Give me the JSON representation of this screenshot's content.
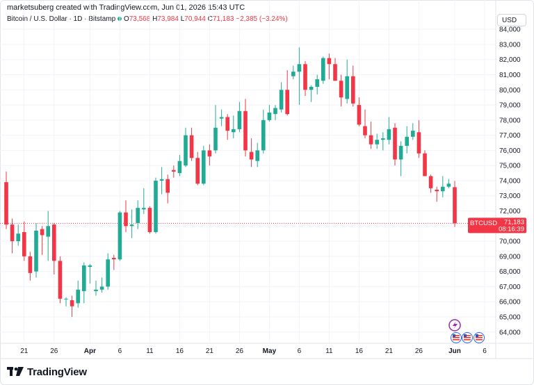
{
  "header": {
    "credit": "marketsuberg created with TradingView.com, Jun 01, 2026 15:43 UTC",
    "symbol": "Bitcoin / U.S. Dollar · 1D · Bitstamp",
    "o_label": "O",
    "o_value": "73,568",
    "h_label": "H",
    "h_value": "73,984",
    "l_label": "L",
    "l_value": "70,944",
    "c_label": "C",
    "c_value": "71,183",
    "change": "−2,385 (−3.24%)"
  },
  "currency_button": "USD",
  "price_tag": {
    "ticker": "BTCUSD",
    "price": "71,183",
    "countdown": "08:16:39"
  },
  "brand": {
    "name": "TradingView",
    "icon": "tradingview-logo-icon"
  },
  "event_icons": [
    "lightning-event-icon",
    "us-flag-event-icon",
    "us-flag-event-icon",
    "us-flag-event-icon"
  ],
  "colors": {
    "up": "#22ab94",
    "down": "#f23645",
    "grid": "#f0f3fa",
    "axis_text": "#131722"
  },
  "chart_data": {
    "type": "candlestick",
    "title": "Bitcoin / U.S. Dollar · 1D · Bitstamp",
    "ylim": [
      63300,
      84100
    ],
    "y_ticks": [
      64000,
      65000,
      66000,
      67000,
      68000,
      69000,
      70000,
      71000,
      72000,
      73000,
      74000,
      75000,
      76000,
      77000,
      78000,
      79000,
      80000,
      81000,
      82000,
      83000,
      84000
    ],
    "y_tick_labels": [
      "64,000",
      "65,000",
      "66,000",
      "67,000",
      "68,000",
      "69,000",
      "70,000",
      "71,000",
      "72,000",
      "73,000",
      "74,000",
      "75,000",
      "76,000",
      "77,000",
      "78,000",
      "79,000",
      "80,000",
      "81,000",
      "82,000",
      "83,000",
      "84,000"
    ],
    "x_tick_labels": [
      {
        "i": 3,
        "label": "21"
      },
      {
        "i": 8,
        "label": "26"
      },
      {
        "i": 14,
        "label": "Apr"
      },
      {
        "i": 19,
        "label": "6"
      },
      {
        "i": 24,
        "label": "11"
      },
      {
        "i": 29,
        "label": "16"
      },
      {
        "i": 34,
        "label": "21"
      },
      {
        "i": 39,
        "label": "26"
      },
      {
        "i": 44,
        "label": "May"
      },
      {
        "i": 49,
        "label": "6"
      },
      {
        "i": 54,
        "label": "11"
      },
      {
        "i": 59,
        "label": "16"
      },
      {
        "i": 64,
        "label": "21"
      },
      {
        "i": 69,
        "label": "26"
      },
      {
        "i": 75,
        "label": "Jun"
      },
      {
        "i": 80,
        "label": "6"
      }
    ],
    "candles": [
      [
        73900,
        74600,
        70800,
        71100
      ],
      [
        71100,
        71500,
        69200,
        70000
      ],
      [
        70000,
        71100,
        69700,
        70500
      ],
      [
        70600,
        71300,
        68700,
        69000
      ],
      [
        69000,
        69300,
        67400,
        67900
      ],
      [
        68000,
        71200,
        67600,
        70700
      ],
      [
        70800,
        71000,
        69100,
        70400
      ],
      [
        70300,
        72000,
        68700,
        71000
      ],
      [
        71100,
        71200,
        67800,
        68700
      ],
      [
        68700,
        69000,
        65900,
        66200
      ],
      [
        66200,
        66300,
        65700,
        66200
      ],
      [
        66100,
        66400,
        65000,
        65700
      ],
      [
        65900,
        67400,
        65600,
        66800
      ],
      [
        66700,
        68600,
        65900,
        68400
      ],
      [
        68300,
        68500,
        67200,
        68400
      ],
      [
        66700,
        67400,
        66400,
        66800
      ],
      [
        66800,
        67600,
        66600,
        67000
      ],
      [
        67000,
        69200,
        66800,
        68800
      ],
      [
        68900,
        69100,
        68100,
        68800
      ],
      [
        68800,
        72000,
        68700,
        71900
      ],
      [
        71900,
        72700,
        70600,
        71000
      ],
      [
        71000,
        72100,
        70200,
        71100
      ],
      [
        71200,
        72700,
        70800,
        72200
      ],
      [
        72100,
        73500,
        71800,
        72200
      ],
      [
        72200,
        72300,
        70500,
        70600
      ],
      [
        70600,
        74200,
        70500,
        74000
      ],
      [
        74000,
        74900,
        73100,
        74100
      ],
      [
        74100,
        74400,
        72500,
        73200
      ],
      [
        74700,
        75000,
        74200,
        74600
      ],
      [
        74500,
        75700,
        74300,
        75300
      ],
      [
        75000,
        77500,
        74900,
        77000
      ],
      [
        77000,
        77500,
        75300,
        75500
      ],
      [
        75500,
        75900,
        73700,
        73800
      ],
      [
        73800,
        76300,
        73700,
        76000
      ],
      [
        76000,
        76400,
        75000,
        75600
      ],
      [
        76000,
        79000,
        75800,
        77500
      ],
      [
        78100,
        78700,
        77600,
        78200
      ],
      [
        78200,
        78400,
        76700,
        77300
      ],
      [
        77200,
        78300,
        76800,
        77400
      ],
      [
        77400,
        79200,
        77200,
        78600
      ],
      [
        78600,
        79400,
        75600,
        76000
      ],
      [
        75900,
        76800,
        74900,
        75400
      ],
      [
        75300,
        76500,
        74900,
        76000
      ],
      [
        76000,
        78700,
        75800,
        78000
      ],
      [
        78000,
        79000,
        77900,
        78500
      ],
      [
        78400,
        79000,
        78000,
        78800
      ],
      [
        78700,
        80500,
        78500,
        80000
      ],
      [
        80000,
        81300,
        78300,
        78400
      ],
      [
        80900,
        81600,
        80700,
        81200
      ],
      [
        81200,
        82800,
        79000,
        81700
      ],
      [
        81700,
        81900,
        79600,
        80000
      ],
      [
        80000,
        80300,
        79200,
        80200
      ],
      [
        80200,
        81000,
        79700,
        80700
      ],
      [
        80600,
        82200,
        80400,
        82100
      ],
      [
        82100,
        82400,
        80700,
        81700
      ],
      [
        81700,
        82100,
        80600,
        80600
      ],
      [
        80600,
        81000,
        78900,
        79500
      ],
      [
        79400,
        82000,
        79100,
        80900
      ],
      [
        80900,
        81600,
        78900,
        79100
      ],
      [
        79000,
        79500,
        77600,
        77700
      ],
      [
        77600,
        78700,
        76800,
        77000
      ],
      [
        77000,
        77900,
        76100,
        76400
      ],
      [
        76400,
        77100,
        76100,
        76700
      ],
      [
        76700,
        77200,
        76000,
        76800
      ],
      [
        76700,
        78200,
        76400,
        77400
      ],
      [
        77500,
        77800,
        75000,
        75400
      ],
      [
        75400,
        76600,
        74300,
        76300
      ],
      [
        76300,
        77600,
        75800,
        76900
      ],
      [
        76900,
        77800,
        76700,
        77300
      ],
      [
        77200,
        78000,
        75500,
        75800
      ],
      [
        75800,
        76000,
        74300,
        74300
      ],
      [
        74300,
        74400,
        73200,
        73500
      ],
      [
        73400,
        73600,
        72600,
        73300
      ],
      [
        73300,
        74300,
        72900,
        73600
      ],
      [
        73600,
        74100,
        73500,
        73800
      ],
      [
        73568,
        73984,
        70944,
        71183
      ]
    ]
  }
}
